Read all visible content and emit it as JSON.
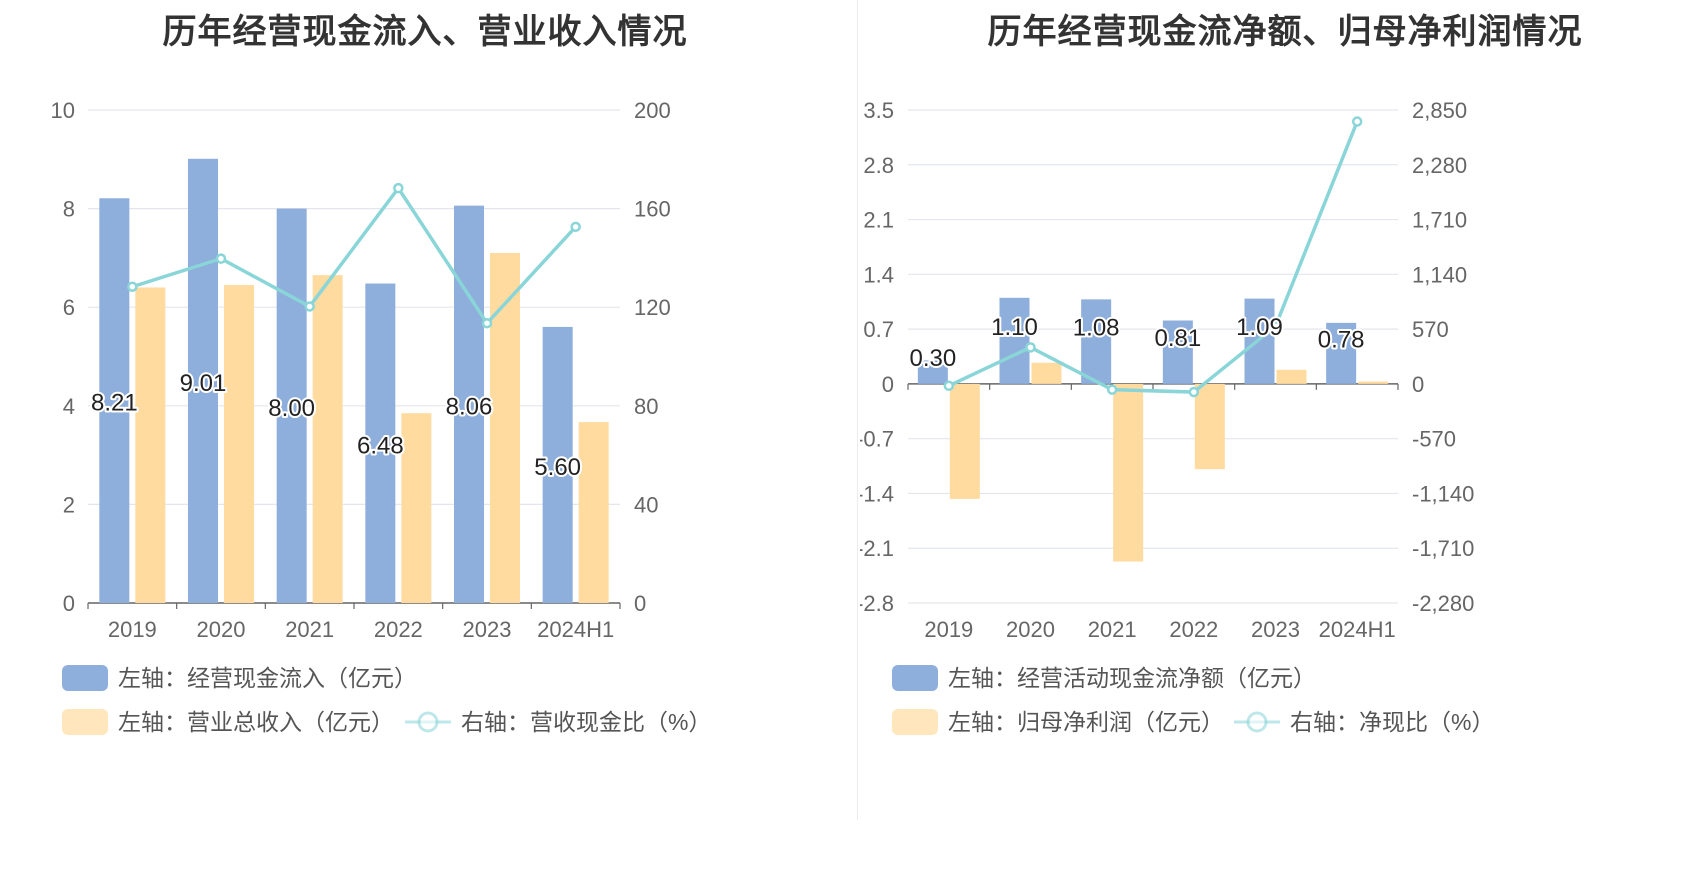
{
  "colors": {
    "bar_primary": "#8EAEDB",
    "bar_secondary": "#FFDBA0",
    "line": "#8AD5D8",
    "grid": "#E3E6EE",
    "axis": "#666666"
  },
  "chart_data": [
    {
      "type": "bar",
      "title": "历年经营现金流入、营业收入情况",
      "categories": [
        "2019",
        "2020",
        "2021",
        "2022",
        "2023",
        "2024H1"
      ],
      "y_left": {
        "ticks": [
          "0",
          "2",
          "4",
          "6",
          "8",
          "10"
        ],
        "min": 0,
        "max": 10
      },
      "y_right": {
        "ticks": [
          "0",
          "40",
          "80",
          "120",
          "160",
          "200"
        ],
        "min": 0,
        "max": 200
      },
      "grid": true,
      "legend_position": "bottom",
      "series": [
        {
          "name": "左轴：经营现金流入（亿元）",
          "type": "bar",
          "axis": "left",
          "values": [
            8.21,
            9.01,
            8.0,
            6.48,
            8.06,
            5.6
          ],
          "labels": [
            "8.21",
            "9.01",
            "8.00",
            "6.48",
            "8.06",
            "5.60"
          ]
        },
        {
          "name": "左轴：营业总收入（亿元）",
          "type": "bar",
          "axis": "left",
          "values": [
            6.4,
            6.45,
            6.65,
            3.85,
            7.1,
            3.67
          ]
        },
        {
          "name": "右轴：营收现金比（%）",
          "type": "line",
          "axis": "right",
          "values": [
            128.3,
            139.7,
            120.3,
            168.3,
            113.5,
            152.6
          ]
        }
      ]
    },
    {
      "type": "bar",
      "title": "历年经营现金流净额、归母净利润情况",
      "categories": [
        "2019",
        "2020",
        "2021",
        "2022",
        "2023",
        "2024H1"
      ],
      "y_left": {
        "ticks": [
          "-2.8",
          "-2.1",
          "-1.4",
          "-0.7",
          "0",
          "0.7",
          "1.4",
          "2.1",
          "2.8",
          "3.5"
        ],
        "min": -2.8,
        "max": 3.5
      },
      "y_right": {
        "ticks": [
          "-2,280",
          "-1,710",
          "-1,140",
          "-570",
          "0",
          "570",
          "1,140",
          "1,710",
          "2,280",
          "2,850"
        ],
        "min": -2280,
        "max": 2850
      },
      "grid": true,
      "legend_position": "bottom",
      "series": [
        {
          "name": "左轴：经营活动现金流净额（亿元）",
          "type": "bar",
          "axis": "left",
          "values": [
            0.3,
            1.1,
            1.08,
            0.81,
            1.09,
            0.78
          ],
          "labels": [
            "0.30",
            "1.10",
            "1.08",
            "0.81",
            "1.09",
            "0.78"
          ]
        },
        {
          "name": "左轴：归母净利润（亿元）",
          "type": "bar",
          "axis": "left",
          "values": [
            -1.47,
            0.27,
            -2.27,
            -1.09,
            0.18,
            0.03
          ]
        },
        {
          "name": "右轴：净现比（%）",
          "type": "line",
          "axis": "right",
          "values": [
            -20,
            380,
            -60,
            -85,
            600,
            2730
          ]
        }
      ]
    }
  ]
}
